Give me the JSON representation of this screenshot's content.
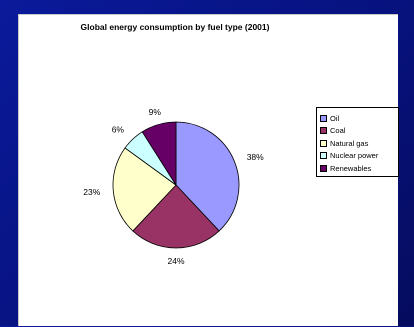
{
  "chart_data": {
    "type": "pie",
    "title": "Global energy consumption by fuel type (2001)",
    "categories": [
      "Oil",
      "Coal",
      "Natural gas",
      "Nuclear power",
      "Renewables"
    ],
    "values": [
      38,
      24,
      23,
      6,
      9
    ],
    "value_labels": [
      "38%",
      "24%",
      "23%",
      "6%",
      "9%"
    ],
    "colors": [
      "#9999ff",
      "#993366",
      "#ffffcc",
      "#ccffff",
      "#660066"
    ],
    "legend_position": "right"
  }
}
